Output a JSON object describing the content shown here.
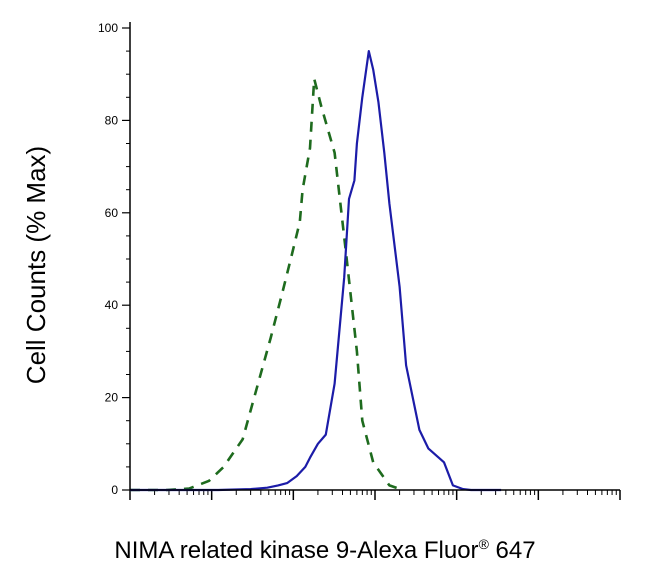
{
  "chart_data": {
    "type": "line",
    "title": "",
    "xlabel": "NIMA related kinase 9-Alexa Fluor",
    "xlabel_mark": "®",
    "xlabel_suffix": " 647",
    "ylabel": "Cell Counts (% Max)",
    "x_scale": "log",
    "xlim": [
      0.1,
      100000
    ],
    "ylim": [
      0,
      100
    ],
    "y_ticks": [
      "0",
      "20",
      "40",
      "60",
      "80",
      "100"
    ],
    "grid": false,
    "colors": {
      "control": "#1e6b1e",
      "sample": "#1c1ca8"
    },
    "series": [
      {
        "style": "dashed",
        "color": "#1e6b1e",
        "x": [
          0.1,
          0.28,
          0.53,
          0.93,
          1.4,
          2.4,
          3.2,
          5.3,
          7.4,
          9.6,
          12,
          13,
          16,
          18,
          22,
          32,
          45,
          60,
          70,
          95,
          150,
          220
        ],
        "y": [
          0,
          0,
          0.3,
          2,
          5,
          11,
          19,
          33,
          43,
          51,
          58,
          65,
          74,
          89,
          83,
          73,
          50,
          30,
          15,
          6,
          1,
          0
        ]
      },
      {
        "style": "solid",
        "color": "#1c1ca8",
        "x": [
          0.1,
          1.2,
          3,
          4.8,
          6.5,
          8.4,
          11,
          14,
          16,
          20,
          25,
          32,
          42,
          48,
          56,
          60,
          70,
          84,
          95,
          110,
          130,
          150,
          200,
          240,
          350,
          450,
          700,
          900,
          1200,
          1500,
          2000,
          3500
        ],
        "y": [
          0,
          0,
          0.2,
          0.5,
          1,
          1.5,
          3,
          5,
          7,
          10,
          12,
          23,
          46,
          63,
          67,
          75,
          85,
          95,
          91,
          84,
          73,
          62,
          44,
          27,
          13,
          9,
          6,
          1,
          0.2,
          0,
          0,
          0
        ]
      }
    ]
  }
}
